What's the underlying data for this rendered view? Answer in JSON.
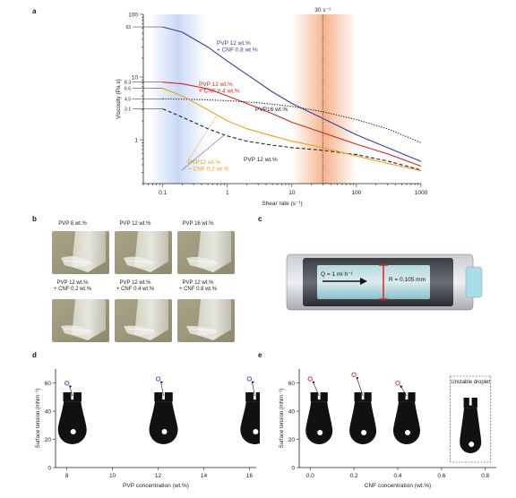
{
  "panels": {
    "a": "a",
    "b": "b",
    "c": "c",
    "d": "d",
    "e": "e"
  },
  "panel_b": {
    "captions": [
      "PVP 8 wt.%",
      "PVP 12 wt.%",
      "PVP 16 wt.%",
      "PVP 12 wt.%\n+ CNF 0.2 wt.%",
      "PVP 12 wt.%\n+ CNF 0.4 wt.%",
      "PVP 12 wt.%\n+ CNF 0.8 wt.%"
    ]
  },
  "panel_c": {
    "flow_label": "Q = 1 ml h⁻¹",
    "radius_label": "R = 0.105 mm"
  },
  "colors": {
    "blue": "#3b3f9a",
    "red": "#d7261e",
    "orange": "#f0a020",
    "black": "#222222",
    "blue_band": "#c9d9f5",
    "orange_band": "#f6b48f",
    "cyan": "#6fc6d6"
  },
  "chart_data": [
    {
      "type": "line",
      "xlabel": "Shear rate (s⁻¹)",
      "ylabel": "Viscosity (Pa s)",
      "xscale": "log",
      "yscale": "log",
      "xlim": [
        0.05,
        1000
      ],
      "ylim": [
        0.2,
        100
      ],
      "x_ticks": [
        "0.1",
        "1",
        "10",
        "100",
        "1000"
      ],
      "y_ticks": [
        "100",
        "10",
        "1"
      ],
      "y_value_ticks": [
        "63",
        "8.3",
        "6.6",
        "4.5",
        "3.1"
      ],
      "annotation": "30 s⁻¹",
      "series_labels": [
        "PVP 12 wt.%\n+ CNF 0.8 wt.%",
        "PVP 12 wt.%\n+ CNF 0.4 wt.%",
        "PVP16 wt.%",
        "PVP 12 wt.%",
        "PVP12 wt.%\n+ CNF 0.2 wt.%"
      ],
      "series": [
        {
          "color": "#3b3f9a",
          "style": "solid",
          "x": [
            0.1,
            0.2,
            0.5,
            1,
            2,
            5,
            10,
            30,
            100,
            300,
            1000
          ],
          "y": [
            63,
            52,
            30,
            18,
            11,
            5.8,
            3.8,
            2.2,
            1.2,
            0.75,
            0.45
          ]
        },
        {
          "color": "#d7261e",
          "style": "solid",
          "x": [
            0.1,
            0.2,
            0.5,
            1,
            2,
            5,
            10,
            30,
            100,
            300,
            1000
          ],
          "y": [
            8.3,
            7.8,
            6.5,
            5.0,
            3.8,
            2.6,
            1.9,
            1.3,
            0.85,
            0.6,
            0.38
          ]
        },
        {
          "color": "#222222",
          "style": "dotted",
          "x": [
            0.1,
            0.3,
            1,
            3,
            10,
            30,
            100,
            300,
            1000
          ],
          "y": [
            4.5,
            4.4,
            4.2,
            3.9,
            3.4,
            2.8,
            2.1,
            1.5,
            0.9
          ]
        },
        {
          "color": "#222222",
          "style": "dashed",
          "x": [
            0.1,
            0.2,
            0.5,
            1,
            2,
            5,
            10,
            30,
            100,
            300,
            1000
          ],
          "y": [
            3.1,
            2.3,
            1.5,
            1.15,
            0.95,
            0.82,
            0.75,
            0.68,
            0.58,
            0.46,
            0.33
          ]
        },
        {
          "color": "#f0a020",
          "style": "solid",
          "x": [
            0.1,
            0.2,
            0.5,
            1,
            2,
            5,
            10,
            30,
            100,
            300,
            1000
          ],
          "y": [
            6.6,
            5.0,
            3.0,
            2.0,
            1.5,
            1.15,
            0.95,
            0.75,
            0.55,
            0.42,
            0.32
          ]
        }
      ]
    },
    {
      "type": "scatter",
      "xlabel": "PVP concentration (wt.%)",
      "ylabel": "Surface tension (mNm⁻¹)",
      "xlim": [
        7.5,
        16.3
      ],
      "ylim": [
        0,
        70
      ],
      "x_ticks": [
        "8",
        "10",
        "12",
        "14",
        "16"
      ],
      "y_ticks": [
        "0",
        "20",
        "40",
        "60"
      ],
      "series": [
        {
          "color": "#3b3fbf",
          "x": [
            8,
            12,
            16
          ],
          "y": [
            60,
            63,
            63
          ]
        }
      ]
    },
    {
      "type": "scatter",
      "xlabel": "CNF concentration (wt.%)",
      "ylabel": "Surface tension (mNm⁻¹)",
      "xlim": [
        -0.05,
        0.85
      ],
      "ylim": [
        0,
        70
      ],
      "x_ticks": [
        "0.0",
        "0.2",
        "0.4",
        "0.6",
        "0.8"
      ],
      "y_ticks": [
        "0",
        "20",
        "40",
        "60"
      ],
      "annotation": "Unstable droplet",
      "series": [
        {
          "color": "#d7261e",
          "x": [
            0.0,
            0.2,
            0.4
          ],
          "y": [
            63,
            66,
            60
          ]
        }
      ]
    }
  ]
}
